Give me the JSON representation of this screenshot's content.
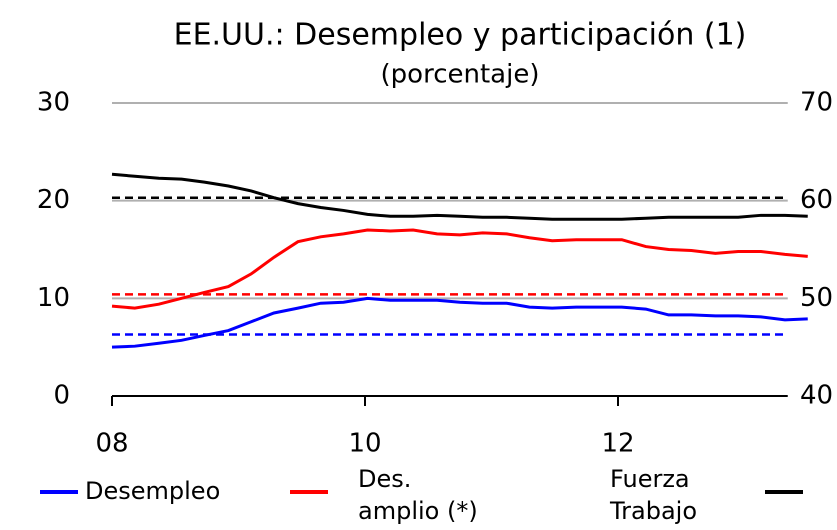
{
  "chart_data": {
    "type": "line",
    "title": "EE.UU.: Desempleo y participación (1)",
    "subtitle": "(porcentaje)",
    "x": [
      8.0,
      8.18,
      8.37,
      8.55,
      8.73,
      8.92,
      9.1,
      9.28,
      9.47,
      9.65,
      9.83,
      10.02,
      10.2,
      10.38,
      10.57,
      10.75,
      10.93,
      11.12,
      11.3,
      11.48,
      11.67,
      11.85,
      12.03,
      12.22,
      12.4,
      12.58,
      12.77,
      12.95,
      13.13,
      13.32,
      13.5
    ],
    "xlim": [
      8,
      13.5
    ],
    "xticks": [
      {
        "value": 8,
        "label": "08"
      },
      {
        "value": 10,
        "label": "10"
      },
      {
        "value": 12,
        "label": "12"
      }
    ],
    "ylim": [
      0,
      30
    ],
    "yticks": [
      0,
      10,
      20,
      30
    ],
    "y2lim": [
      40,
      70
    ],
    "y2ticks": [
      40,
      50,
      60,
      70
    ],
    "grid": true,
    "series": [
      {
        "name": "Desempleo",
        "color": "#0000ff",
        "values": [
          5.0,
          5.1,
          5.4,
          5.7,
          6.2,
          6.7,
          7.6,
          8.5,
          9.0,
          9.5,
          9.6,
          10.0,
          9.8,
          9.8,
          9.8,
          9.6,
          9.5,
          9.5,
          9.1,
          9.0,
          9.1,
          9.1,
          9.1,
          8.9,
          8.3,
          8.3,
          8.2,
          8.2,
          8.1,
          7.8,
          7.9
        ]
      },
      {
        "name": "Des. amplio (*)",
        "color": "#ff0000",
        "values": [
          9.2,
          9.0,
          9.4,
          10.0,
          10.6,
          11.2,
          12.5,
          14.2,
          15.8,
          16.3,
          16.6,
          17.0,
          16.9,
          17.0,
          16.6,
          16.5,
          16.7,
          16.6,
          16.2,
          15.9,
          16.0,
          16.0,
          16.0,
          15.3,
          15.0,
          14.9,
          14.6,
          14.8,
          14.8,
          14.5,
          14.3
        ]
      },
      {
        "name": "Fuerza Trabajo",
        "color": "#000000",
        "axis": "y2",
        "values": [
          62.7,
          62.5,
          62.3,
          62.2,
          61.9,
          61.5,
          61.0,
          60.3,
          59.7,
          59.3,
          59.0,
          58.6,
          58.4,
          58.4,
          58.5,
          58.4,
          58.3,
          58.3,
          58.2,
          58.1,
          58.1,
          58.1,
          58.1,
          58.2,
          58.3,
          58.3,
          58.3,
          58.3,
          58.5,
          58.5,
          58.4
        ]
      }
    ],
    "hlines": [
      {
        "value": 6.3,
        "color": "#0000ff"
      },
      {
        "value": 10.4,
        "color": "#ff0000"
      },
      {
        "value": 60.3,
        "color": "#000000",
        "axis": "y2"
      }
    ]
  }
}
